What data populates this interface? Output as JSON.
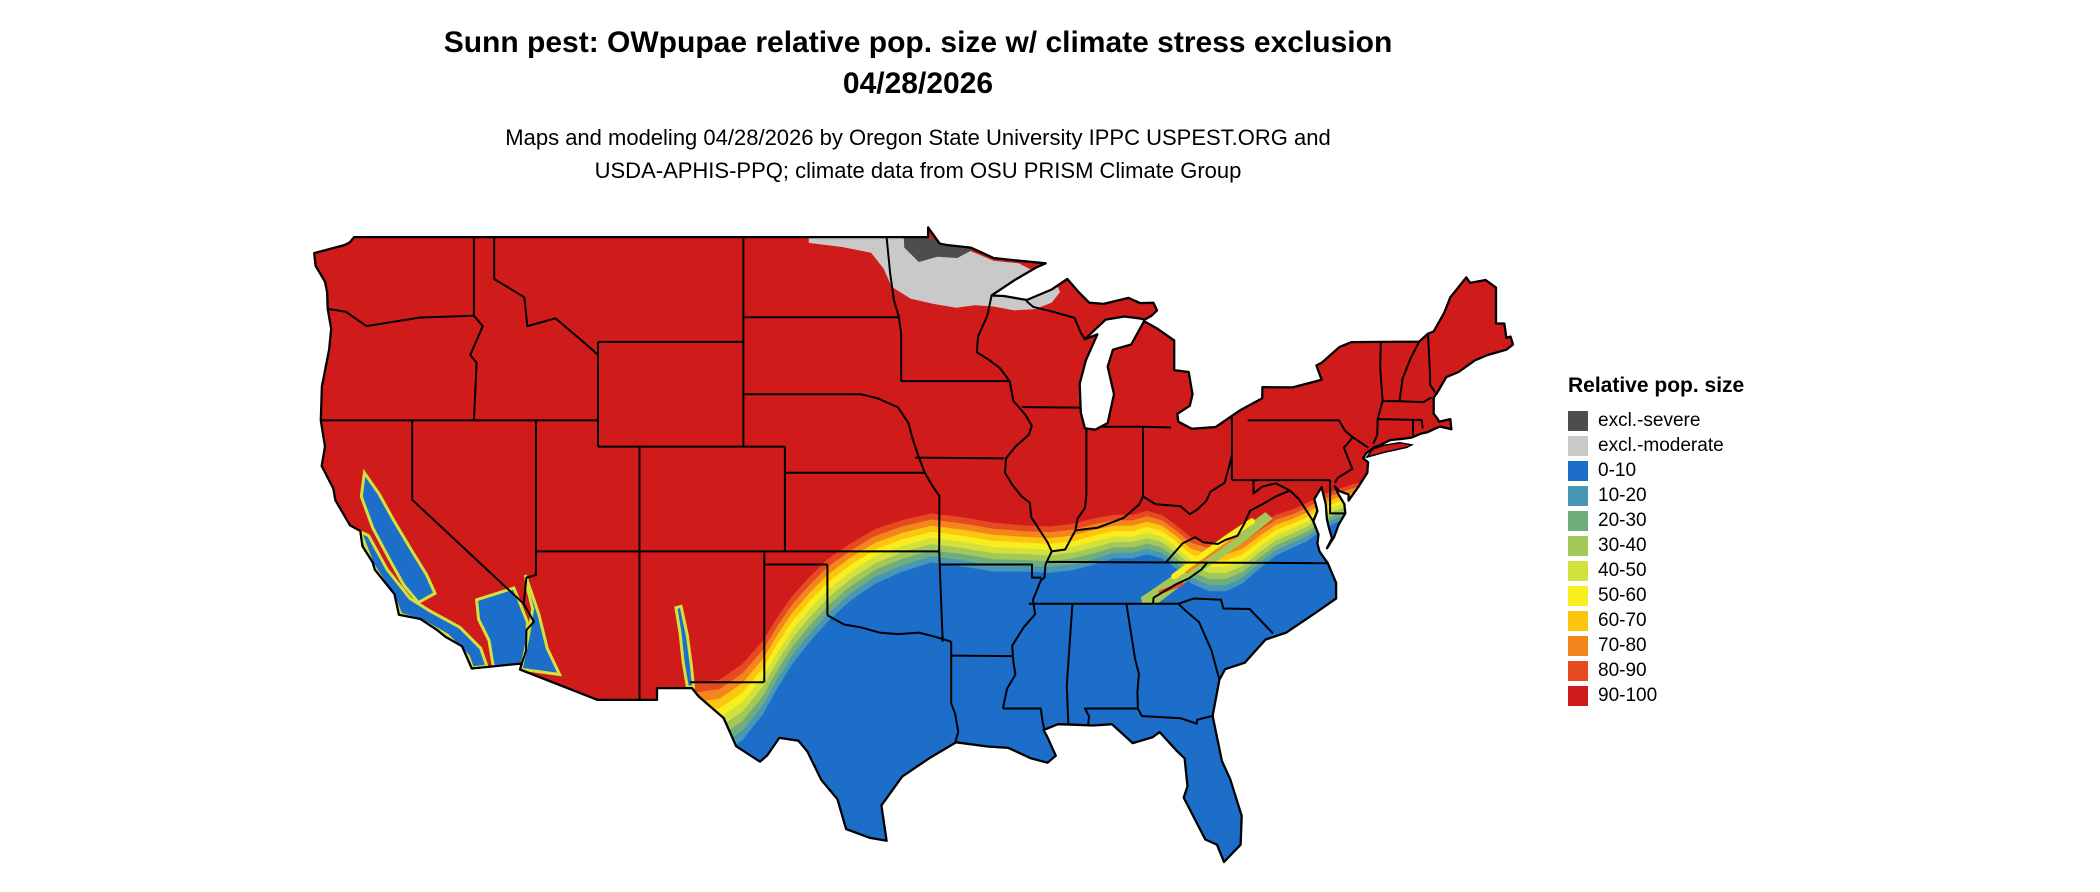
{
  "title": {
    "line1": "Sunn pest: OWpupae relative pop. size w/ climate stress exclusion",
    "line2": "04/28/2026"
  },
  "attribution": {
    "line1": "Maps and modeling 04/28/2026 by Oregon State University IPPC USPEST.ORG and",
    "line2": "USDA-APHIS-PPQ; climate data from OSU PRISM Climate Group"
  },
  "legend": {
    "title": "Relative pop. size",
    "entries": [
      {
        "label": "excl.-severe",
        "color": "#4d4d4d"
      },
      {
        "label": "excl.-moderate",
        "color": "#c9c9c9"
      },
      {
        "label": "0-10",
        "color": "#1d6ec9"
      },
      {
        "label": "10-20",
        "color": "#4897b5"
      },
      {
        "label": "20-30",
        "color": "#6fae7c"
      },
      {
        "label": "30-40",
        "color": "#a3c857"
      },
      {
        "label": "40-50",
        "color": "#d3e13c"
      },
      {
        "label": "50-60",
        "color": "#f8ee1e"
      },
      {
        "label": "60-70",
        "color": "#fdc50f"
      },
      {
        "label": "70-80",
        "color": "#f2861d"
      },
      {
        "label": "80-90",
        "color": "#e54a21"
      },
      {
        "label": "90-100",
        "color": "#d01b1b"
      }
    ]
  },
  "map": {
    "region": "Continental United States",
    "water_color": "#ffffff",
    "boundary_color": "#000000"
  }
}
